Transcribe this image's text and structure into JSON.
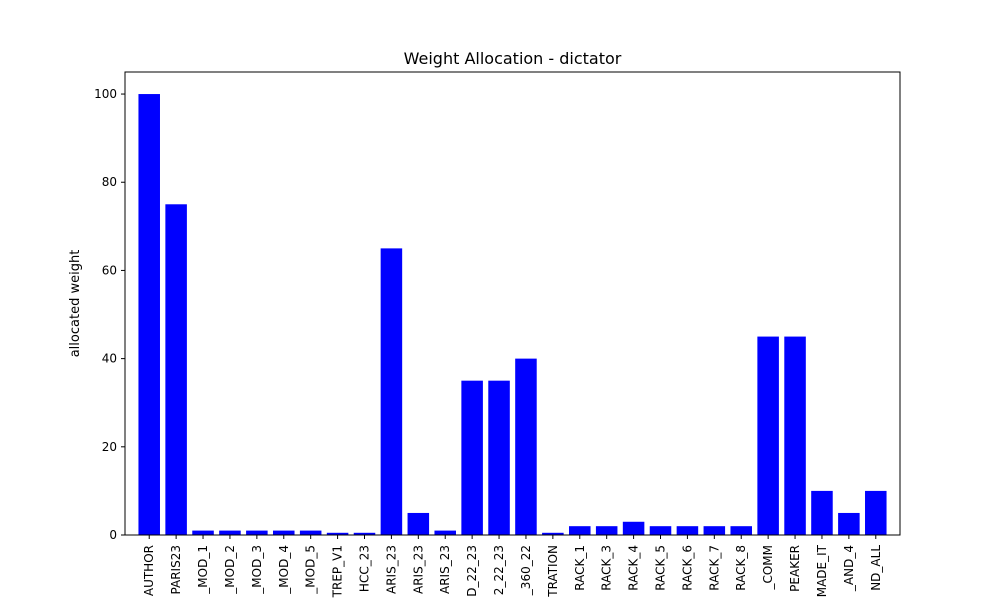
{
  "chart_data": {
    "type": "bar",
    "title": "Weight Allocation - dictator",
    "xlabel": "",
    "ylabel": "allocated weight",
    "ylim": [
      0,
      105
    ],
    "yticks": [
      0,
      20,
      40,
      60,
      80,
      100
    ],
    "grid": false,
    "bar_color": "#0000ff",
    "categories": [
      "AUTHOR",
      "PARIS23",
      "_MOD_1",
      "_MOD_2",
      "_MOD_3",
      "_MOD_4",
      "_MOD_5",
      "TREP_V1",
      "HCC_23",
      "ARIS_23",
      "ARIS_23",
      "ARIS_23",
      "D_22_23",
      "2_22_23",
      "_360_22",
      "TRATION",
      "RACK_1",
      "RACK_3",
      "RACK_4",
      "RACK_5",
      "RACK_6",
      "RACK_7",
      "RACK_8",
      "_COMM",
      "PEAKER",
      "MADE_IT",
      "_AND_4",
      "ND_ALL"
    ],
    "values": [
      100,
      75,
      1,
      1,
      1,
      1,
      1,
      0.5,
      0.5,
      65,
      5,
      1,
      35,
      35,
      40,
      0.5,
      2,
      2,
      3,
      2,
      2,
      2,
      2,
      45,
      45,
      10,
      5,
      10
    ]
  }
}
